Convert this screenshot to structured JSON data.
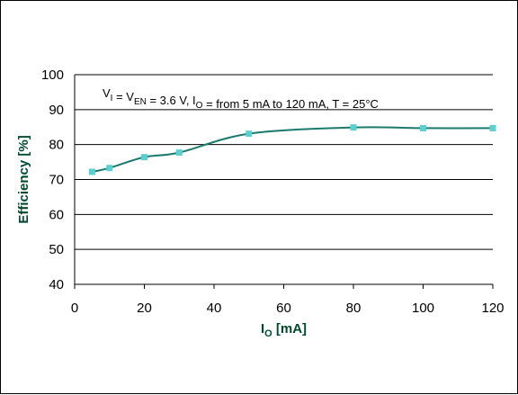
{
  "chart_data": {
    "type": "line",
    "annotation": {
      "parts": [
        {
          "t": "V",
          "sub": "I"
        },
        {
          "t": " = V",
          "sub": "EN"
        },
        {
          "t": " = 3.6 V, I",
          "sub": "O"
        },
        {
          "t": " = from 5 mA to 120 mA, T = 25°C",
          "sub": ""
        }
      ]
    },
    "xlabel": {
      "main": "I",
      "sub": "O",
      "rest": " [mA]"
    },
    "ylabel": "Efficiency [%]",
    "xlim": [
      0,
      120
    ],
    "ylim": [
      40,
      100
    ],
    "xticks": [
      "0",
      "20",
      "40",
      "60",
      "80",
      "100",
      "120"
    ],
    "yticks": [
      "40",
      "50",
      "60",
      "70",
      "80",
      "90",
      "100"
    ],
    "grid": "horizontal",
    "series": [
      {
        "x": [
          5,
          10,
          20,
          30,
          50,
          80,
          100,
          120
        ],
        "y": [
          72.2,
          73.3,
          76.4,
          77.7,
          83.1,
          84.9,
          84.7,
          84.7
        ],
        "line_color": "#1b7a6e",
        "marker_color": "#5ad0d0"
      }
    ]
  }
}
